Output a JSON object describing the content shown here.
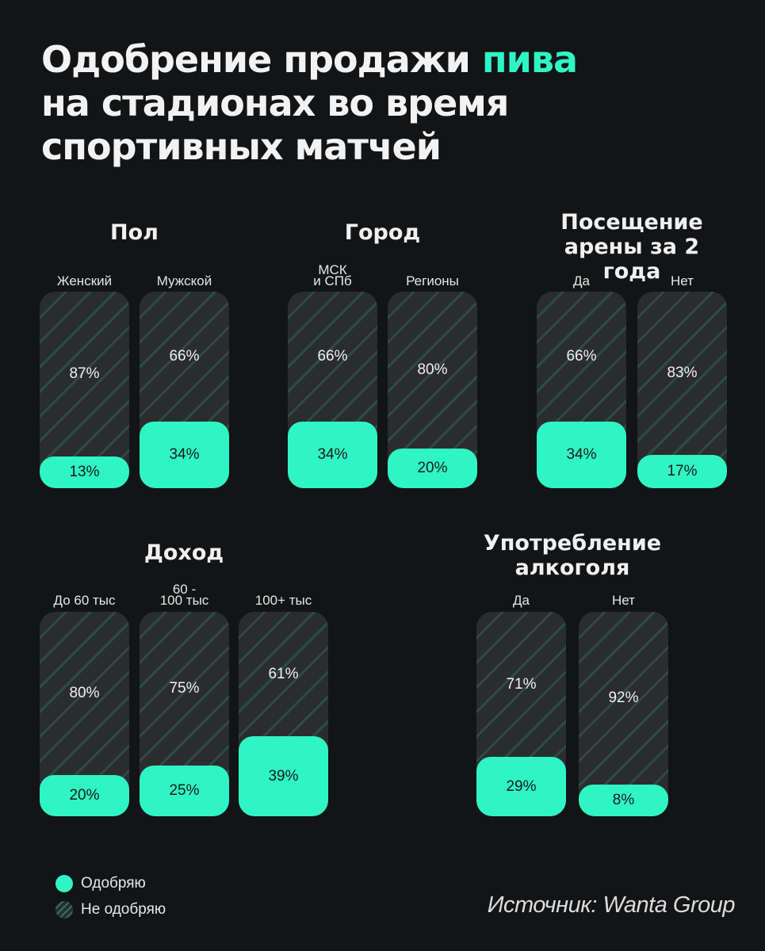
{
  "title": {
    "line1": "Одобрение продажи ",
    "accent": "пива",
    "line2": "на стадионах во время",
    "line3": "спортивных матчей"
  },
  "colors": {
    "approve": "#2ff5c4",
    "disapprove": "#2b2c2e",
    "background": "#121416"
  },
  "legend": [
    {
      "key": "approve",
      "label": "Одобряю"
    },
    {
      "key": "disapprove",
      "label": "Не одобряю"
    }
  ],
  "source": "Источник: Wanta Group",
  "chart_data": [
    {
      "type": "bar",
      "title": "Пол",
      "categories": [
        "Женский",
        "Мужской"
      ],
      "series": [
        {
          "name": "Одобряю",
          "values": [
            13,
            34
          ]
        },
        {
          "name": "Не одобряю",
          "values": [
            87,
            66
          ]
        }
      ]
    },
    {
      "type": "bar",
      "title": "Город",
      "categories": [
        "МСК\nи СПб",
        "Регионы"
      ],
      "series": [
        {
          "name": "Одобряю",
          "values": [
            34,
            20
          ]
        },
        {
          "name": "Не одобряю",
          "values": [
            66,
            80
          ]
        }
      ]
    },
    {
      "type": "bar",
      "title": "Посещение\nарены за 2 года",
      "categories": [
        "Да",
        "Нет"
      ],
      "series": [
        {
          "name": "Одобряю",
          "values": [
            34,
            17
          ]
        },
        {
          "name": "Не одобряю",
          "values": [
            66,
            83
          ]
        }
      ]
    },
    {
      "type": "bar",
      "title": "Доход",
      "categories": [
        "До 60 тыс",
        "60 -\n100 тыс",
        "100+ тыс"
      ],
      "series": [
        {
          "name": "Одобряю",
          "values": [
            20,
            25,
            39
          ]
        },
        {
          "name": "Не одобряю",
          "values": [
            80,
            75,
            61
          ]
        }
      ]
    },
    {
      "type": "bar",
      "title": "Употребление\nалкоголя",
      "categories": [
        "Да",
        "Нет"
      ],
      "series": [
        {
          "name": "Одобряю",
          "values": [
            29,
            8
          ]
        },
        {
          "name": "Не одобряю",
          "values": [
            71,
            92
          ]
        }
      ]
    }
  ]
}
